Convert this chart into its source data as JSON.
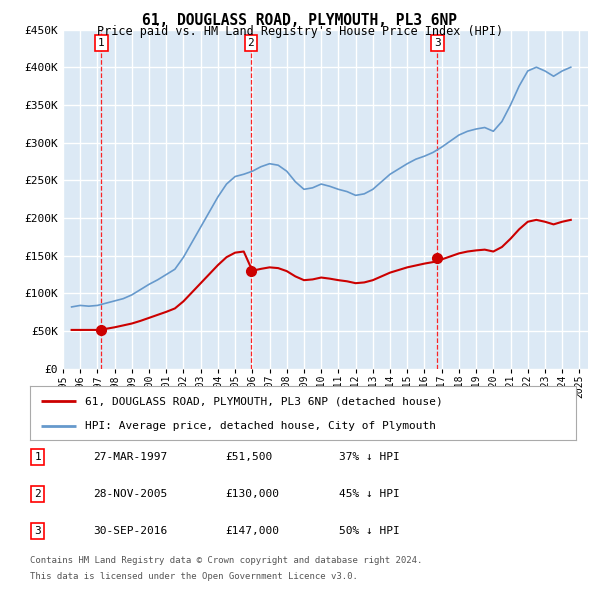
{
  "title": "61, DOUGLASS ROAD, PLYMOUTH, PL3 6NP",
  "subtitle": "Price paid vs. HM Land Registry's House Price Index (HPI)",
  "ylim": [
    0,
    450000
  ],
  "yticks": [
    0,
    50000,
    100000,
    150000,
    200000,
    250000,
    300000,
    350000,
    400000,
    450000
  ],
  "ytick_labels": [
    "£0",
    "£50K",
    "£100K",
    "£150K",
    "£200K",
    "£250K",
    "£300K",
    "£350K",
    "£400K",
    "£450K"
  ],
  "xlim_start": 1995.0,
  "xlim_end": 2025.5,
  "plot_bg_color": "#dce9f5",
  "grid_color": "#ffffff",
  "sale_dates": [
    1997.23,
    2005.91,
    2016.75
  ],
  "sale_prices": [
    51500,
    130000,
    147000
  ],
  "sale_labels": [
    "1",
    "2",
    "3"
  ],
  "sale_date_strs": [
    "27-MAR-1997",
    "28-NOV-2005",
    "30-SEP-2016"
  ],
  "sale_price_strs": [
    "£51,500",
    "£130,000",
    "£147,000"
  ],
  "sale_hpi_strs": [
    "37% ↓ HPI",
    "45% ↓ HPI",
    "50% ↓ HPI"
  ],
  "red_line_color": "#cc0000",
  "blue_line_color": "#6699cc",
  "legend_label_red": "61, DOUGLASS ROAD, PLYMOUTH, PL3 6NP (detached house)",
  "legend_label_blue": "HPI: Average price, detached house, City of Plymouth",
  "footer_line1": "Contains HM Land Registry data © Crown copyright and database right 2024.",
  "footer_line2": "This data is licensed under the Open Government Licence v3.0.",
  "hpi_years": [
    1995.5,
    1996.0,
    1996.5,
    1997.0,
    1997.5,
    1998.0,
    1998.5,
    1999.0,
    1999.5,
    2000.0,
    2000.5,
    2001.0,
    2001.5,
    2002.0,
    2002.5,
    2003.0,
    2003.5,
    2004.0,
    2004.5,
    2005.0,
    2005.5,
    2006.0,
    2006.5,
    2007.0,
    2007.5,
    2008.0,
    2008.5,
    2009.0,
    2009.5,
    2010.0,
    2010.5,
    2011.0,
    2011.5,
    2012.0,
    2012.5,
    2013.0,
    2013.5,
    2014.0,
    2014.5,
    2015.0,
    2015.5,
    2016.0,
    2016.5,
    2017.0,
    2017.5,
    2018.0,
    2018.5,
    2019.0,
    2019.5,
    2020.0,
    2020.5,
    2021.0,
    2021.5,
    2022.0,
    2022.5,
    2023.0,
    2023.5,
    2024.0,
    2024.5
  ],
  "hpi_values": [
    82000,
    84000,
    83000,
    84000,
    87000,
    90000,
    93000,
    98000,
    105000,
    112000,
    118000,
    125000,
    132000,
    148000,
    168000,
    188000,
    208000,
    228000,
    245000,
    255000,
    258000,
    262000,
    268000,
    272000,
    270000,
    262000,
    248000,
    238000,
    240000,
    245000,
    242000,
    238000,
    235000,
    230000,
    232000,
    238000,
    248000,
    258000,
    265000,
    272000,
    278000,
    282000,
    287000,
    294000,
    302000,
    310000,
    315000,
    318000,
    320000,
    315000,
    328000,
    350000,
    375000,
    395000,
    400000,
    395000,
    388000,
    395000,
    400000
  ],
  "red_years": [
    1995.5,
    1996.0,
    1996.5,
    1997.0,
    1997.5,
    1998.0,
    1998.5,
    1999.0,
    1999.5,
    2000.0,
    2000.5,
    2001.0,
    2001.5,
    2002.0,
    2002.5,
    2003.0,
    2003.5,
    2004.0,
    2004.5,
    2005.0,
    2005.5,
    2006.0,
    2006.5,
    2007.0,
    2007.5,
    2008.0,
    2008.5,
    2009.0,
    2009.5,
    2010.0,
    2010.5,
    2011.0,
    2011.5,
    2012.0,
    2012.5,
    2013.0,
    2013.5,
    2014.0,
    2014.5,
    2015.0,
    2015.5,
    2016.0,
    2016.5,
    2017.0,
    2017.5,
    2018.0,
    2018.5,
    2019.0,
    2019.5,
    2020.0,
    2020.5,
    2021.0,
    2021.5,
    2022.0,
    2022.5,
    2023.0,
    2023.5,
    2024.0,
    2024.5
  ],
  "red_values": [
    51500,
    51500,
    51500,
    51500,
    53000,
    55000,
    57500,
    60000,
    63500,
    67500,
    71500,
    75500,
    80000,
    89500,
    101500,
    113500,
    125500,
    137500,
    148000,
    154000,
    155500,
    130000,
    132500,
    134500,
    133500,
    129500,
    122500,
    117500,
    118500,
    121000,
    119500,
    117500,
    116000,
    113500,
    114500,
    117500,
    122500,
    127500,
    131000,
    134500,
    137000,
    139500,
    141500,
    145000,
    149000,
    153000,
    155500,
    157000,
    158000,
    155500,
    161500,
    172500,
    185000,
    195000,
    197500,
    195000,
    191500,
    195000,
    197500
  ]
}
